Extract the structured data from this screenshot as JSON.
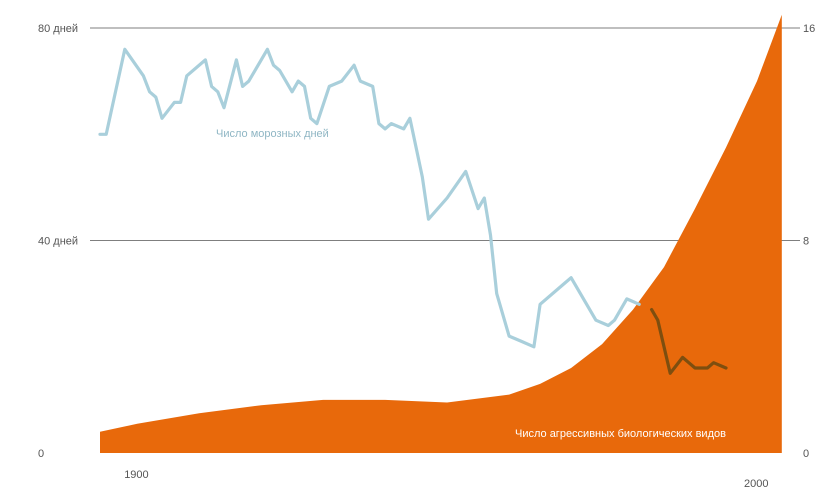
{
  "chart_data": {
    "type": "area",
    "title": "",
    "xlabel": "",
    "ylabel": "",
    "xlim": [
      1894,
      2005
    ],
    "x_ticks": [
      "1900",
      "2000"
    ],
    "y_left": {
      "ylim": [
        0,
        80
      ],
      "ticks": [
        "0",
        "40 дней",
        "80 дней"
      ]
    },
    "y_right": {
      "ylim": [
        0,
        16
      ],
      "ticks": [
        "0",
        "8",
        "16"
      ]
    },
    "grid": "horizontal",
    "series": [
      {
        "name": "Число морозных дней",
        "kind": "line",
        "axis": "left",
        "color": "#a9cfdb",
        "color_late": "#6b4a10",
        "x": [
          1894,
          1895,
          1898,
          1901,
          1902,
          1903,
          1904,
          1906,
          1907,
          1908,
          1911,
          1912,
          1913,
          1914,
          1916,
          1917,
          1918,
          1920,
          1921,
          1922,
          1923,
          1925,
          1926,
          1927,
          1928,
          1929,
          1931,
          1933,
          1935,
          1936,
          1938,
          1939,
          1940,
          1941,
          1943,
          1944,
          1946,
          1947,
          1950,
          1953,
          1955,
          1956,
          1957,
          1958,
          1960,
          1962,
          1964,
          1965,
          1969,
          1970,
          1972,
          1974,
          1976,
          1977,
          1979,
          1981,
          1983,
          1984,
          1986,
          1988,
          1989,
          1990,
          1992,
          1993,
          1995
        ],
        "y": [
          60,
          60,
          76,
          71,
          68,
          67,
          63,
          66,
          66,
          71,
          74,
          69,
          68,
          65,
          74,
          69,
          70,
          74,
          76,
          73,
          72,
          68,
          70,
          69,
          63,
          62,
          69,
          70,
          73,
          70,
          69,
          62,
          61,
          62,
          61,
          63,
          52,
          44,
          48,
          53,
          46,
          48,
          41,
          30,
          22,
          21,
          20,
          28,
          32,
          33,
          29,
          25,
          24,
          25,
          29,
          28,
          27,
          25,
          15,
          18,
          17,
          16,
          16,
          17,
          16
        ],
        "late_from_x": 1982
      },
      {
        "name": "Число агрессивных биологических видов",
        "kind": "area",
        "axis": "right",
        "color": "#e8690b",
        "x": [
          1894,
          1900,
          1910,
          1920,
          1930,
          1940,
          1950,
          1960,
          1965,
          1970,
          1975,
          1980,
          1985,
          1990,
          1995,
          2000,
          2004
        ],
        "y": [
          0.8,
          1.1,
          1.5,
          1.8,
          2.0,
          2.0,
          1.9,
          2.2,
          2.6,
          3.2,
          4.1,
          5.4,
          7.0,
          9.2,
          11.5,
          14.0,
          16.5
        ]
      }
    ]
  }
}
